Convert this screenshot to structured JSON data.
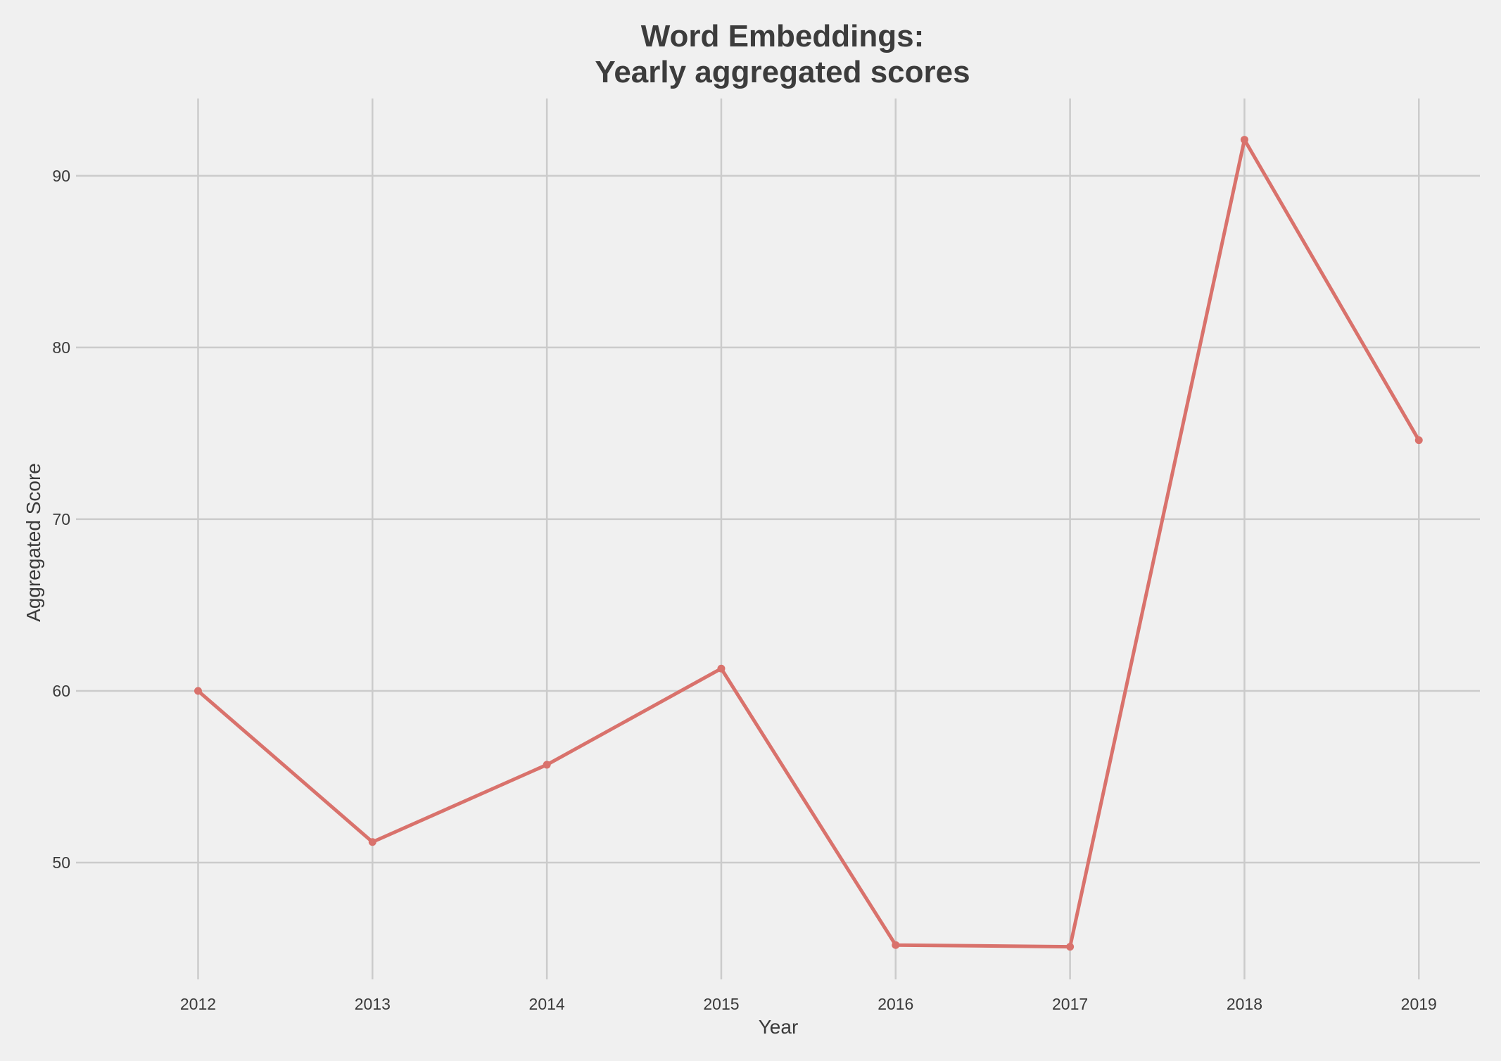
{
  "chart_data": {
    "type": "line",
    "title": "Word Embeddings:\nYearly aggregated scores",
    "title_lines": [
      "Word Embeddings:",
      "Yearly aggregated scores"
    ],
    "xlabel": "Year",
    "ylabel": "Aggregated Score",
    "x": [
      2012,
      2013,
      2014,
      2015,
      2016,
      2017,
      2018,
      2019
    ],
    "x_tick_labels": [
      "2012",
      "2013",
      "2014",
      "2015",
      "2016",
      "2017",
      "2018",
      "2019"
    ],
    "y_ticks": [
      50,
      60,
      70,
      80,
      90
    ],
    "y_tick_labels": [
      "50",
      "60",
      "70",
      "80",
      "90"
    ],
    "series": [
      {
        "values": [
          60.0,
          51.2,
          55.7,
          61.3,
          45.2,
          45.1,
          92.1,
          74.6
        ]
      }
    ],
    "xlim": [
      2011.3,
      2019.35
    ],
    "ylim": [
      43.2,
      94.5
    ],
    "grid": true,
    "legend": "none",
    "colors": {
      "line": "#d9726c",
      "background": "#f0f0f0",
      "grid": "#cbcbcb",
      "text": "#3c3c3c"
    }
  }
}
